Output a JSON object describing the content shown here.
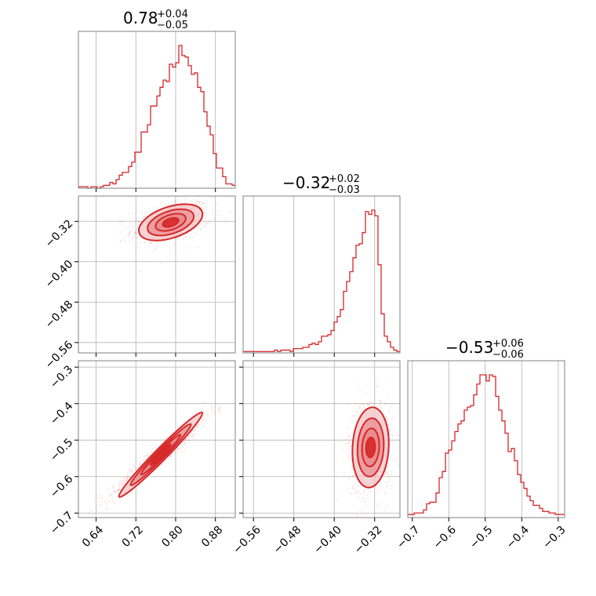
{
  "colors": {
    "accent": "#d62728",
    "fill_light": "#f4c2c4",
    "fill_mid": "#e88a8d",
    "grid": "#b0b0b0",
    "frame": "#808080"
  },
  "chart_data": {
    "type": "corner",
    "variables": [
      "x0",
      "x1",
      "x2"
    ],
    "titles": [
      {
        "main": "0.78",
        "plus": "+0.04",
        "minus": "−0.05"
      },
      {
        "main": "−0.32",
        "plus": "+0.02",
        "minus": "−0.03"
      },
      {
        "main": "−0.53",
        "plus": "+0.06",
        "minus": "−0.06"
      }
    ],
    "ranges": [
      [
        0.6045,
        0.9199
      ],
      [
        -0.5805,
        -0.2699
      ],
      [
        -0.7123,
        -0.2825
      ]
    ],
    "grid": true,
    "axes": {
      "x0_ticks": [
        0.64,
        0.72,
        0.8,
        0.88
      ],
      "x0_tick_labels": [
        "0.64",
        "0.72",
        "0.80",
        "0.88"
      ],
      "x1_ticks": [
        -0.56,
        -0.48,
        -0.4,
        -0.32
      ],
      "x1_tick_labels": [
        "−0.56",
        "−0.48",
        "−0.40",
        "−0.32"
      ],
      "x2_ticks": [
        -0.7,
        -0.6,
        -0.5,
        -0.4,
        -0.3
      ],
      "x2_tick_labels": [
        "−0.7",
        "−0.6",
        "−0.5",
        "−0.4",
        "−0.3"
      ]
    },
    "histograms": [
      {
        "variable": "x0",
        "bin_edges_start": 0.6045,
        "bin_width": 0.006308,
        "counts": [
          1,
          1,
          1,
          0,
          1,
          1,
          0,
          1,
          2,
          2,
          4,
          3,
          6,
          9,
          11,
          11,
          15,
          18,
          25,
          25,
          39,
          39,
          44,
          57,
          57,
          64,
          70,
          75,
          74,
          86,
          84,
          87,
          99,
          92,
          91,
          85,
          79,
          80,
          70,
          67,
          53,
          43,
          37,
          24,
          14,
          14,
          8,
          3,
          3,
          2
        ]
      },
      {
        "variable": "x1",
        "bin_edges_start": -0.5805,
        "bin_width": 0.006212,
        "counts": [
          1,
          1,
          1,
          1,
          1,
          1,
          1,
          1,
          1,
          1,
          2,
          1,
          2,
          2,
          2,
          1,
          3,
          3,
          3,
          4,
          4,
          6,
          7,
          6,
          8,
          12,
          12,
          13,
          16,
          22,
          26,
          31,
          44,
          51,
          58,
          68,
          77,
          78,
          86,
          101,
          99,
          102,
          98,
          63,
          28,
          12,
          8,
          4,
          2,
          1
        ]
      },
      {
        "variable": "x2",
        "bin_edges_start": -0.7123,
        "bin_width": 0.008596,
        "counts": [
          2,
          2,
          3,
          3,
          3,
          5,
          9,
          10,
          10,
          16,
          26,
          30,
          42,
          44,
          50,
          56,
          61,
          63,
          70,
          72,
          73,
          80,
          87,
          93,
          93,
          89,
          93,
          92,
          79,
          70,
          63,
          55,
          43,
          45,
          37,
          28,
          23,
          19,
          14,
          11,
          8,
          8,
          6,
          4,
          4,
          3,
          3,
          2,
          2,
          2
        ]
      }
    ],
    "pairs": [
      {
        "x": "x0",
        "y": "x1",
        "mean": [
          0.79,
          -0.322
        ],
        "sd": [
          0.032,
          0.018
        ],
        "rho": 0.45
      },
      {
        "x": "x0",
        "y": "x2",
        "mean": [
          0.77,
          -0.54
        ],
        "sd": [
          0.042,
          0.058
        ],
        "rho": 0.98
      },
      {
        "x": "x1",
        "y": "x2",
        "mean": [
          -0.328,
          -0.52
        ],
        "sd": [
          0.018,
          0.055
        ],
        "rho": 0.1
      }
    ]
  }
}
